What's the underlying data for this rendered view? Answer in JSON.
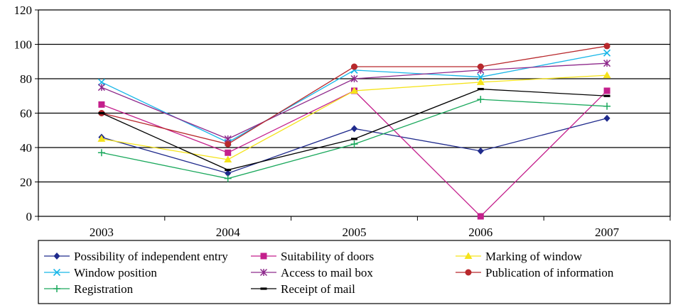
{
  "chart_data": {
    "type": "line",
    "title": "",
    "xlabel": "",
    "ylabel": "",
    "categories": [
      "2003",
      "2004",
      "2005",
      "2006",
      "2007"
    ],
    "ylim": [
      0,
      120
    ],
    "yticks": [
      "0",
      "20",
      "40",
      "60",
      "80",
      "100",
      "120"
    ],
    "grid": "horizontal",
    "legend_position": "bottom",
    "series": [
      {
        "name": "Possibility of independent entry",
        "color": "#1f2a8c",
        "marker": "diamond",
        "values": [
          46,
          25,
          51,
          38,
          57
        ]
      },
      {
        "name": "Suitability of doors",
        "color": "#c41f8c",
        "marker": "square",
        "values": [
          65,
          37,
          73,
          0,
          73
        ]
      },
      {
        "name": "Marking of window",
        "color": "#f5e31a",
        "marker": "triangle",
        "values": [
          45,
          33,
          73,
          78,
          82
        ]
      },
      {
        "name": "Window position",
        "color": "#18b6e8",
        "marker": "x",
        "values": [
          78,
          43,
          85,
          81,
          95
        ]
      },
      {
        "name": "Access to mail box",
        "color": "#8e2a8c",
        "marker": "star",
        "values": [
          75,
          45,
          80,
          85,
          89
        ]
      },
      {
        "name": "Publication of information",
        "color": "#b8282c",
        "marker": "circle",
        "values": [
          60,
          42,
          87,
          87,
          99
        ]
      },
      {
        "name": "Registration",
        "color": "#1aa85c",
        "marker": "plus",
        "values": [
          37,
          22,
          42,
          68,
          64
        ]
      },
      {
        "name": "Receipt of mail",
        "color": "#000000",
        "marker": "dash",
        "values": [
          60,
          27,
          45,
          74,
          70
        ]
      }
    ]
  }
}
